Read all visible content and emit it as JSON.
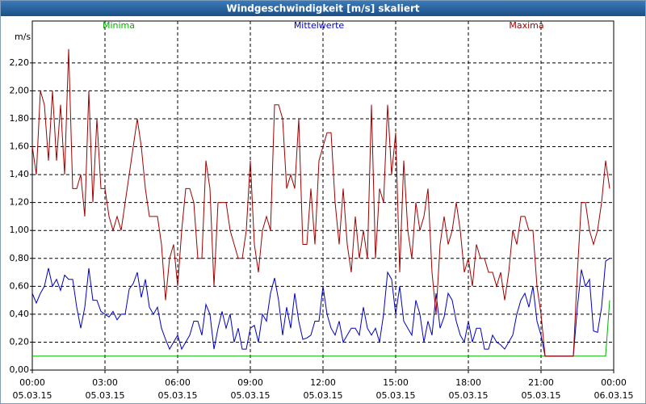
{
  "chart_data": {
    "type": "line",
    "title": "Windgeschwindigkeit [m/s] skaliert",
    "y_label": "m/s",
    "x": [
      0,
      10,
      20,
      30,
      40,
      50,
      60,
      70,
      80,
      90,
      100,
      110,
      120,
      130,
      140,
      150,
      160,
      170,
      180,
      190,
      200,
      210,
      220,
      230,
      240,
      250,
      260,
      270,
      280,
      290,
      300,
      310,
      320,
      330,
      340,
      350,
      360,
      370,
      380,
      390,
      400,
      410,
      420,
      430,
      440,
      450,
      460,
      470,
      480,
      490,
      500,
      510,
      520,
      530,
      540,
      550,
      560,
      570,
      580,
      590,
      600,
      610,
      620,
      630,
      640,
      650,
      660,
      670,
      680,
      690,
      700,
      710,
      720,
      730,
      740,
      750,
      760,
      770,
      780,
      790,
      800,
      810,
      820,
      830,
      840,
      850,
      860,
      870,
      880,
      890,
      900,
      910,
      920,
      930,
      940,
      950,
      960,
      970,
      980,
      990,
      1000,
      1010,
      1020,
      1030,
      1040,
      1050,
      1060,
      1070,
      1080,
      1090,
      1100,
      1110,
      1120,
      1130,
      1140,
      1150,
      1160,
      1170,
      1180,
      1190,
      1200,
      1210,
      1220,
      1230,
      1240,
      1250,
      1260,
      1270,
      1280,
      1290,
      1300,
      1310,
      1320,
      1330,
      1340,
      1350,
      1360,
      1370,
      1380,
      1390,
      1400,
      1410,
      1420,
      1430
    ],
    "series": [
      {
        "name": "Minima",
        "color": "#00b000",
        "values": [
          0.1,
          0.1,
          0.1,
          0.1,
          0.1,
          0.1,
          0.1,
          0.1,
          0.1,
          0.1,
          0.1,
          0.1,
          0.1,
          0.1,
          0.1,
          0.1,
          0.1,
          0.1,
          0.1,
          0.1,
          0.1,
          0.1,
          0.1,
          0.1,
          0.1,
          0.1,
          0.1,
          0.1,
          0.1,
          0.1,
          0.1,
          0.1,
          0.1,
          0.1,
          0.1,
          0.1,
          0.1,
          0.1,
          0.1,
          0.1,
          0.1,
          0.1,
          0.1,
          0.1,
          0.1,
          0.1,
          0.1,
          0.1,
          0.1,
          0.1,
          0.1,
          0.1,
          0.1,
          0.1,
          0.1,
          0.1,
          0.1,
          0.1,
          0.1,
          0.1,
          0.1,
          0.1,
          0.1,
          0.1,
          0.1,
          0.1,
          0.1,
          0.1,
          0.1,
          0.1,
          0.1,
          0.1,
          0.1,
          0.1,
          0.1,
          0.1,
          0.1,
          0.1,
          0.1,
          0.1,
          0.1,
          0.1,
          0.1,
          0.1,
          0.1,
          0.1,
          0.1,
          0.1,
          0.1,
          0.1,
          0.1,
          0.1,
          0.1,
          0.1,
          0.1,
          0.1,
          0.1,
          0.1,
          0.1,
          0.1,
          0.1,
          0.1,
          0.1,
          0.1,
          0.1,
          0.1,
          0.1,
          0.1,
          0.1,
          0.1,
          0.1,
          0.1,
          0.1,
          0.1,
          0.1,
          0.1,
          0.1,
          0.1,
          0.1,
          0.1,
          0.1,
          0.1,
          0.1,
          0.1,
          0.1,
          0.1,
          0.1,
          0.1,
          0.1,
          0.1,
          0.1,
          0.1,
          0.1,
          0.1,
          0.1,
          0.1,
          0.1,
          0.1,
          0.1,
          0.1,
          0.1,
          0.1,
          0.1,
          0.5
        ]
      },
      {
        "name": "Mittelwerte",
        "color": "#0000c0",
        "values": [
          0.55,
          0.48,
          0.55,
          0.6,
          0.73,
          0.6,
          0.65,
          0.57,
          0.68,
          0.65,
          0.65,
          0.45,
          0.3,
          0.45,
          0.73,
          0.5,
          0.5,
          0.42,
          0.4,
          0.38,
          0.42,
          0.36,
          0.4,
          0.4,
          0.58,
          0.62,
          0.7,
          0.52,
          0.65,
          0.45,
          0.4,
          0.45,
          0.3,
          0.22,
          0.15,
          0.2,
          0.25,
          0.15,
          0.2,
          0.25,
          0.35,
          0.35,
          0.25,
          0.47,
          0.4,
          0.15,
          0.3,
          0.42,
          0.3,
          0.4,
          0.2,
          0.3,
          0.15,
          0.15,
          0.3,
          0.32,
          0.2,
          0.4,
          0.35,
          0.55,
          0.66,
          0.5,
          0.25,
          0.45,
          0.3,
          0.55,
          0.35,
          0.22,
          0.23,
          0.25,
          0.35,
          0.35,
          0.6,
          0.4,
          0.3,
          0.25,
          0.35,
          0.2,
          0.25,
          0.3,
          0.3,
          0.25,
          0.45,
          0.3,
          0.25,
          0.3,
          0.2,
          0.4,
          0.7,
          0.65,
          0.4,
          0.6,
          0.35,
          0.3,
          0.25,
          0.5,
          0.4,
          0.2,
          0.35,
          0.25,
          0.55,
          0.3,
          0.38,
          0.55,
          0.5,
          0.35,
          0.25,
          0.2,
          0.35,
          0.2,
          0.3,
          0.3,
          0.15,
          0.15,
          0.25,
          0.2,
          0.18,
          0.15,
          0.2,
          0.25,
          0.4,
          0.5,
          0.55,
          0.45,
          0.6,
          0.35,
          0.25,
          0.1,
          0.1,
          0.1,
          0.1,
          0.1,
          0.1,
          0.1,
          0.1,
          0.45,
          0.72,
          0.6,
          0.65,
          0.28,
          0.27,
          0.45,
          0.78,
          0.8
        ]
      },
      {
        "name": "Maxima",
        "color": "#a00000",
        "values": [
          1.6,
          1.4,
          2.0,
          1.9,
          1.5,
          2.0,
          1.5,
          1.9,
          1.4,
          2.3,
          1.3,
          1.3,
          1.4,
          1.1,
          2.0,
          1.2,
          1.8,
          1.3,
          1.3,
          1.1,
          1.0,
          1.1,
          1.0,
          1.2,
          1.4,
          1.6,
          1.8,
          1.6,
          1.3,
          1.1,
          1.1,
          1.1,
          0.9,
          0.5,
          0.8,
          0.9,
          0.6,
          1.0,
          1.3,
          1.3,
          1.2,
          0.8,
          0.8,
          1.5,
          1.3,
          0.6,
          1.2,
          1.2,
          1.2,
          1.0,
          0.9,
          0.8,
          0.8,
          1.0,
          1.5,
          0.9,
          0.7,
          1.0,
          1.1,
          1.0,
          1.9,
          1.9,
          1.8,
          1.3,
          1.4,
          1.3,
          1.8,
          0.9,
          0.9,
          1.3,
          0.9,
          1.5,
          1.6,
          1.7,
          1.7,
          1.2,
          0.9,
          1.3,
          0.9,
          0.7,
          1.1,
          0.8,
          1.0,
          0.8,
          1.9,
          0.8,
          1.3,
          1.2,
          1.9,
          1.4,
          1.7,
          0.7,
          1.5,
          1.0,
          0.8,
          1.2,
          1.0,
          1.1,
          1.3,
          0.7,
          0.4,
          0.9,
          1.1,
          0.9,
          1.0,
          1.2,
          1.0,
          0.7,
          0.8,
          0.6,
          0.9,
          0.8,
          0.8,
          0.7,
          0.7,
          0.6,
          0.7,
          0.5,
          0.7,
          1.0,
          0.9,
          1.1,
          1.1,
          1.0,
          1.0,
          0.6,
          0.4,
          0.1,
          0.1,
          0.1,
          0.1,
          0.1,
          0.1,
          0.1,
          0.1,
          0.7,
          1.2,
          1.2,
          1.0,
          0.9,
          1.0,
          1.2,
          1.5,
          1.3
        ]
      }
    ],
    "xlim": [
      0,
      1440
    ],
    "xticks": [
      {
        "value": 0,
        "label": "00:00"
      },
      {
        "value": 180,
        "label": "03:00"
      },
      {
        "value": 360,
        "label": "06:00"
      },
      {
        "value": 540,
        "label": "09:00"
      },
      {
        "value": 720,
        "label": "12:00"
      },
      {
        "value": 900,
        "label": "15:00"
      },
      {
        "value": 1080,
        "label": "18:00"
      },
      {
        "value": 1260,
        "label": "21:00"
      },
      {
        "value": 1440,
        "label": "00:00"
      }
    ],
    "xtick_dates": [
      "05.03.15",
      "05.03.15",
      "05.03.15",
      "05.03.15",
      "05.03.15",
      "05.03.15",
      "05.03.15",
      "05.03.15",
      "06.03.15"
    ],
    "ylim": [
      0,
      2.5
    ],
    "yticks": [
      {
        "value": 0,
        "label": "0,00"
      },
      {
        "value": 0.2,
        "label": "0,20"
      },
      {
        "value": 0.4,
        "label": "0,40"
      },
      {
        "value": 0.6,
        "label": "0,60"
      },
      {
        "value": 0.8,
        "label": "0,80"
      },
      {
        "value": 1.0,
        "label": "1,00"
      },
      {
        "value": 1.2,
        "label": "1,20"
      },
      {
        "value": 1.4,
        "label": "1,40"
      },
      {
        "value": 1.6,
        "label": "1,60"
      },
      {
        "value": 1.8,
        "label": "1,80"
      },
      {
        "value": 2.0,
        "label": "2,00"
      },
      {
        "value": 2.2,
        "label": "2,20"
      }
    ],
    "grid": true
  }
}
